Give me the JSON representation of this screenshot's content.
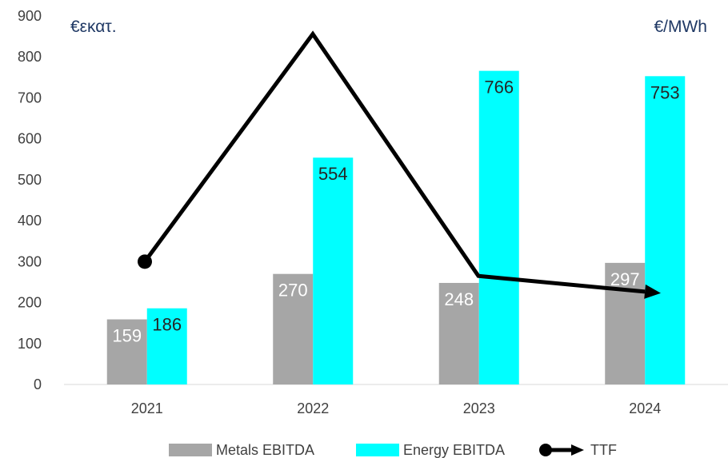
{
  "chart_data": {
    "type": "bar",
    "categories": [
      "2021",
      "2022",
      "2023",
      "2024"
    ],
    "left_unit_label": "€εκατ.",
    "right_unit_label": "€/MWh",
    "ylim": [
      0,
      900
    ],
    "yticks": [
      0,
      100,
      200,
      300,
      400,
      500,
      600,
      700,
      800,
      900
    ],
    "grid": false,
    "legend_position": "bottom",
    "series": [
      {
        "name": "Metals EBITDA",
        "kind": "bar",
        "color": "#a6a6a6",
        "label_color": "#ffffff",
        "values": [
          159,
          270,
          248,
          297
        ]
      },
      {
        "name": "Energy EBITDA",
        "kind": "bar",
        "color": "#00ffff",
        "label_color": "#262626",
        "values": [
          186,
          554,
          766,
          753
        ]
      },
      {
        "name": "TTF",
        "kind": "line",
        "color": "#000000",
        "values": [
          300,
          856,
          265,
          223
        ]
      }
    ]
  }
}
